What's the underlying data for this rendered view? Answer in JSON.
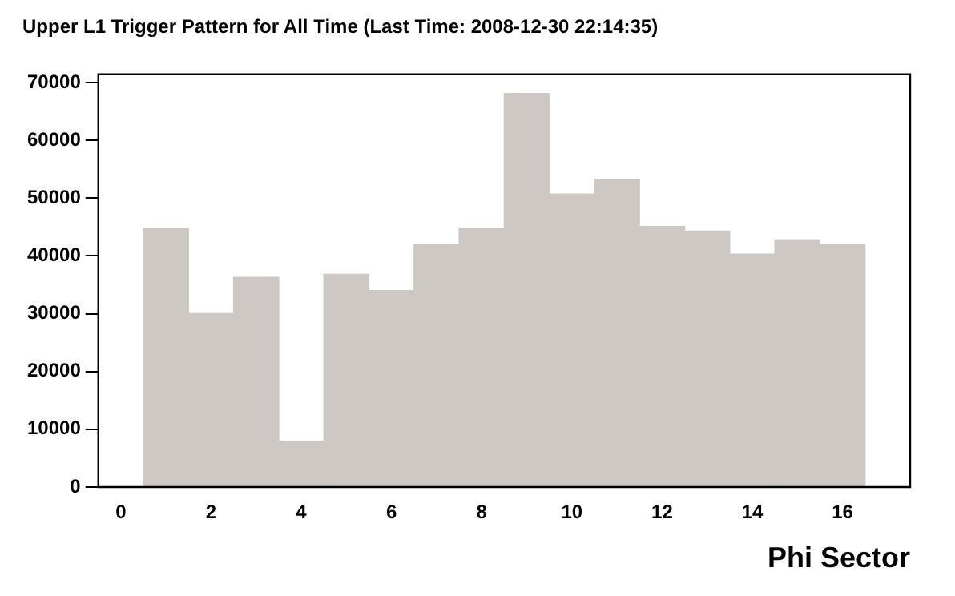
{
  "chart_data": {
    "type": "histogram",
    "title": "Upper L1 Trigger Pattern for All Time (Last Time: 2008-12-30 22:14:35)",
    "xlabel": "Phi Sector",
    "bins": [
      0.5,
      1.5,
      2.5,
      3.5,
      4.5,
      5.5,
      6.5,
      7.5,
      8.5,
      9.5,
      10.5,
      11.5,
      12.5,
      13.5,
      14.5,
      15.5,
      16.5
    ],
    "values": [
      44800,
      30000,
      36300,
      7900,
      36800,
      34000,
      42000,
      44800,
      68100,
      50700,
      53200,
      45100,
      44300,
      40300,
      42800,
      42000
    ],
    "color": "#cdc8c3",
    "xlim": [
      -0.5,
      17.5
    ],
    "xticks": [
      0,
      2,
      4,
      6,
      8,
      10,
      12,
      14,
      16
    ],
    "ylim": [
      0,
      71400
    ],
    "yticks": [
      0,
      10000,
      20000,
      30000,
      40000,
      50000,
      60000,
      70000
    ],
    "grid": false,
    "legend": false
  }
}
